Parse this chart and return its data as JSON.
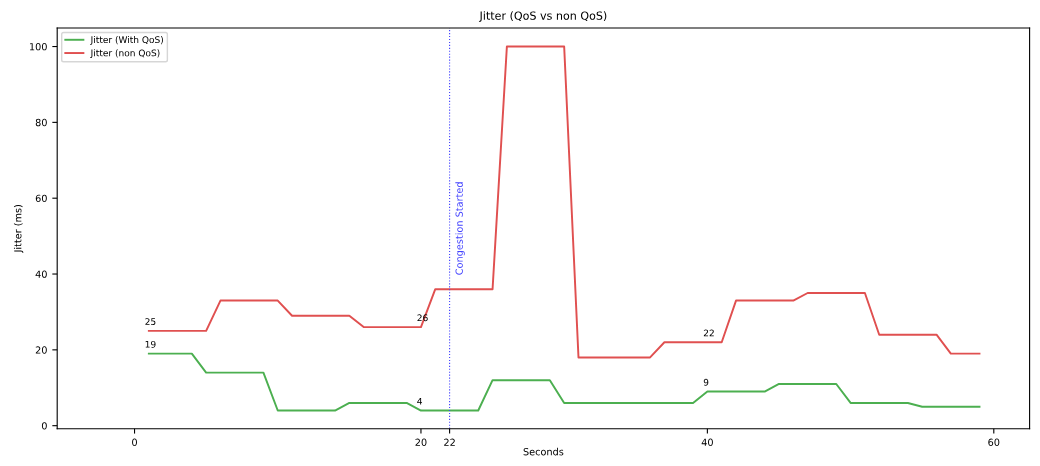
{
  "chart_data": {
    "type": "line",
    "title": "Jitter (QoS vs non QoS)",
    "xlabel": "Seconds",
    "ylabel": "Jitter (ms)",
    "series": [
      {
        "name": "Jitter (With QoS)",
        "color": "#4caf50",
        "x": [
          1,
          4,
          5,
          9,
          10,
          14,
          15,
          19,
          20,
          24,
          25,
          29,
          30,
          39,
          40,
          44,
          45,
          49,
          50,
          54,
          55,
          59
        ],
        "values": [
          19,
          19,
          14,
          14,
          4,
          4,
          6,
          6,
          4,
          4,
          12,
          12,
          6,
          6,
          9,
          9,
          11,
          11,
          6,
          6,
          5,
          5
        ]
      },
      {
        "name": "Jitter (non QoS)",
        "color": "#e05050",
        "x": [
          1,
          5,
          6,
          10,
          11,
          15,
          16,
          20,
          21,
          25,
          26,
          30,
          31,
          36,
          37,
          41,
          42,
          46,
          47,
          51,
          52,
          56,
          57,
          59
        ],
        "values": [
          25,
          25,
          33,
          33,
          29,
          29,
          26,
          26,
          36,
          36,
          100,
          100,
          18,
          18,
          22,
          22,
          33,
          33,
          35,
          35,
          24,
          24,
          19,
          19
        ]
      }
    ],
    "annotations": [
      {
        "text": "25",
        "x": 1,
        "y": 25
      },
      {
        "text": "19",
        "x": 1,
        "y": 19
      },
      {
        "text": "26",
        "x": 20,
        "y": 26
      },
      {
        "text": "4",
        "x": 20,
        "y": 4
      },
      {
        "text": "22",
        "x": 40,
        "y": 22
      },
      {
        "text": "9",
        "x": 40,
        "y": 9
      }
    ],
    "ref_lines": [
      {
        "axis": "x",
        "value": 22,
        "label": "Congestion Started",
        "color": "#4040ff",
        "line_style": "dotted"
      }
    ],
    "xlim": [
      -5.4,
      62.5
    ],
    "ylim": [
      -0.8,
      104.9
    ],
    "xticks": [
      0,
      20,
      22,
      40,
      60
    ],
    "yticks": [
      0,
      20,
      40,
      60,
      80,
      100
    ],
    "legend": "top left",
    "grid": false,
    "marker": "none",
    "line_style": "solid"
  }
}
